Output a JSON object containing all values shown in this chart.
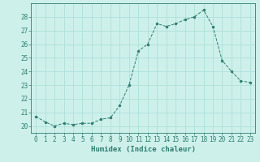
{
  "x": [
    0,
    1,
    2,
    3,
    4,
    5,
    6,
    7,
    8,
    9,
    10,
    11,
    12,
    13,
    14,
    15,
    16,
    17,
    18,
    19,
    20,
    21,
    22,
    23
  ],
  "y": [
    20.7,
    20.3,
    20.0,
    20.2,
    20.1,
    20.2,
    20.2,
    20.5,
    20.6,
    21.5,
    23.0,
    25.5,
    26.0,
    27.5,
    27.3,
    27.5,
    27.8,
    28.0,
    28.5,
    27.3,
    24.8,
    24.0,
    23.3,
    23.2
  ],
  "line_color": "#2e7d6e",
  "marker": "o",
  "marker_size": 2.0,
  "bg_color": "#cef0eb",
  "grid_color": "#a8ddd6",
  "xlabel": "Humidex (Indice chaleur)",
  "xlim": [
    -0.5,
    23.5
  ],
  "ylim": [
    19.5,
    29.0
  ],
  "yticks": [
    20,
    21,
    22,
    23,
    24,
    25,
    26,
    27,
    28
  ],
  "xtick_labels": [
    "0",
    "1",
    "2",
    "3",
    "4",
    "5",
    "6",
    "7",
    "8",
    "9",
    "10",
    "11",
    "12",
    "13",
    "14",
    "15",
    "16",
    "17",
    "18",
    "19",
    "20",
    "21",
    "22",
    "23"
  ],
  "tick_color": "#2e7d6e",
  "label_color": "#2e7d6e",
  "tick_fontsize": 5.5,
  "xlabel_fontsize": 6.5
}
